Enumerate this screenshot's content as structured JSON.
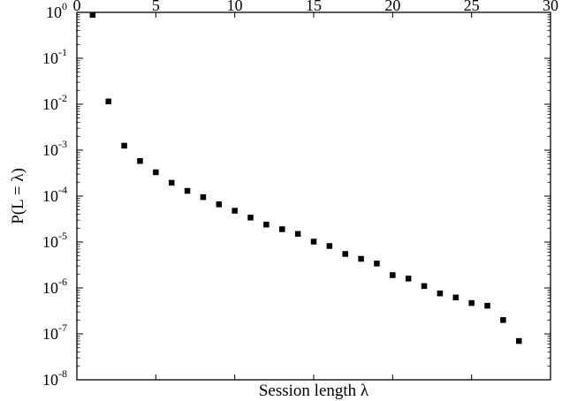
{
  "chart_data": {
    "type": "scatter",
    "title": "",
    "xlabel": "Session length λ",
    "ylabel": "P(L = λ)",
    "xlim": [
      0,
      30
    ],
    "ylim": [
      1e-08,
      1
    ],
    "yscale": "log",
    "x_axis_position": "top",
    "x_ticks": [
      0,
      5,
      10,
      15,
      20,
      25,
      30
    ],
    "x_tick_labels": [
      "0",
      "5",
      "10",
      "15",
      "20",
      "25",
      "30"
    ],
    "y_tick_labels": [
      {
        "base": "10",
        "exp": "0",
        "value": 1
      },
      {
        "base": "10",
        "exp": "-1",
        "value": 0.1
      },
      {
        "base": "10",
        "exp": "-2",
        "value": 0.01
      },
      {
        "base": "10",
        "exp": "-3",
        "value": 0.001
      },
      {
        "base": "10",
        "exp": "-4",
        "value": 0.0001
      },
      {
        "base": "10",
        "exp": "-5",
        "value": 1e-05
      },
      {
        "base": "10",
        "exp": "-6",
        "value": 1e-06
      },
      {
        "base": "10",
        "exp": "-7",
        "value": 1e-07
      },
      {
        "base": "10",
        "exp": "-8",
        "value": 1e-08
      }
    ],
    "grid": false,
    "marker": "square",
    "marker_color": "#000000",
    "series": [
      {
        "x": [
          1,
          2,
          3,
          4,
          5,
          6,
          7,
          8,
          9,
          10,
          11,
          12,
          13,
          14,
          15,
          16,
          17,
          18,
          19,
          20,
          21,
          22,
          23,
          24,
          25,
          26,
          27,
          28
        ],
        "y": [
          0.88,
          0.0115,
          0.00125,
          0.00058,
          0.00033,
          0.000195,
          0.00013,
          9.5e-05,
          6.6e-05,
          4.8e-05,
          3.4e-05,
          2.4e-05,
          1.9e-05,
          1.5e-05,
          1.02e-05,
          8.2e-06,
          5.5e-06,
          4.3e-06,
          3.4e-06,
          1.9e-06,
          1.6e-06,
          1.1e-06,
          7.6e-07,
          6.2e-07,
          4.7e-07,
          4.1e-07,
          2e-07,
          7e-08
        ]
      }
    ]
  }
}
